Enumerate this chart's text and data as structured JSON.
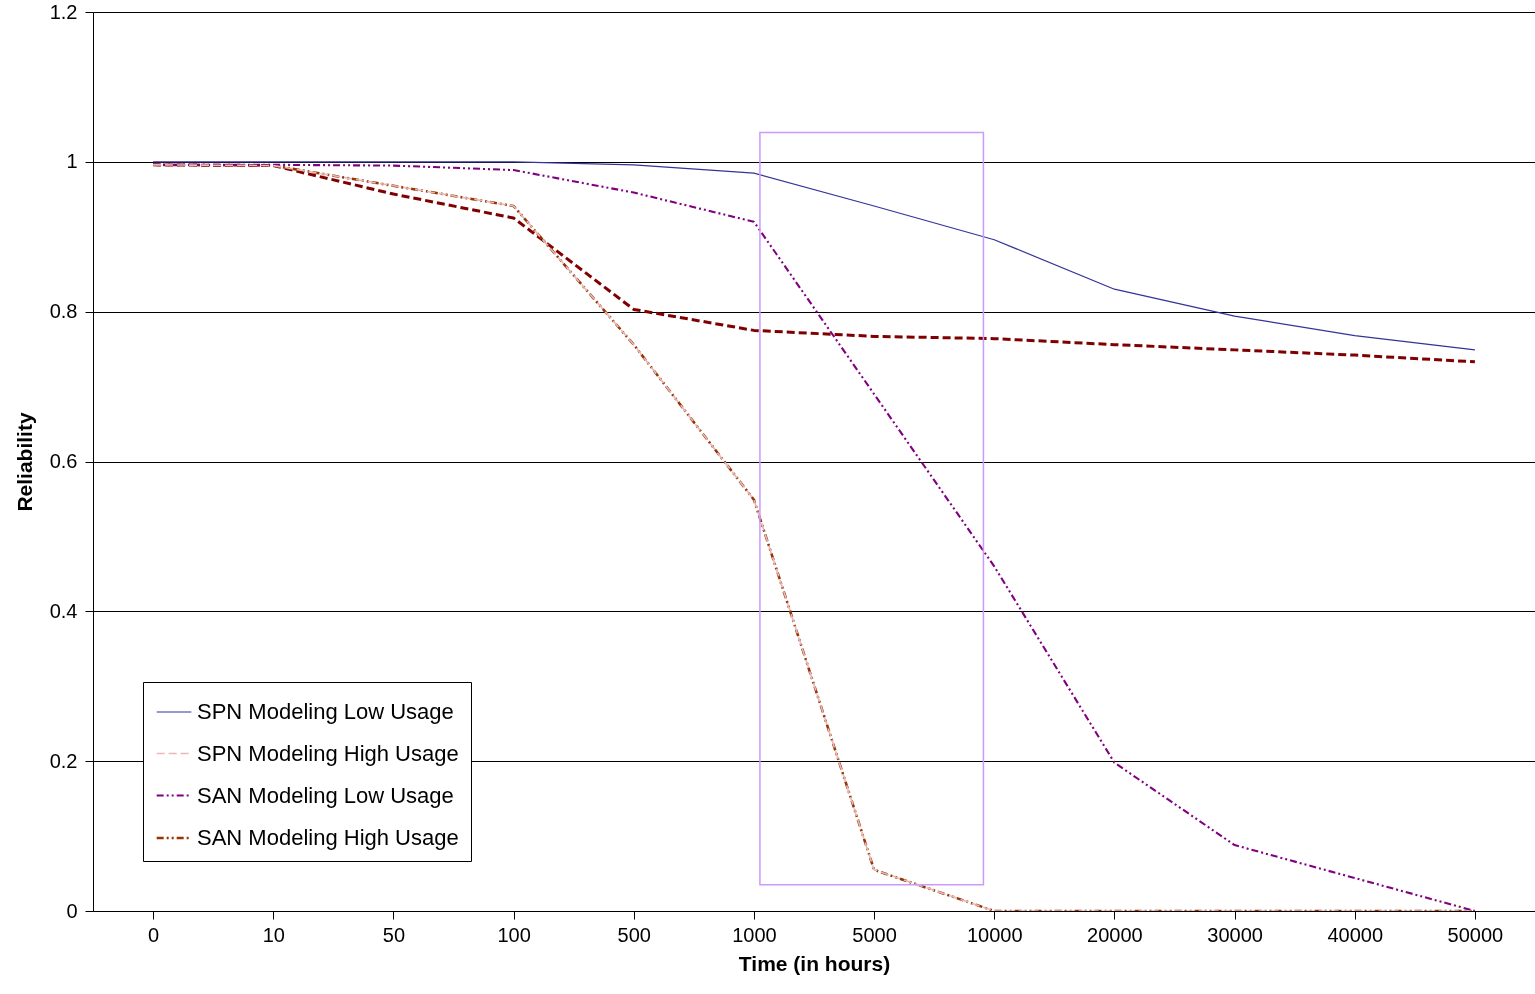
{
  "chart_data": {
    "type": "line",
    "xlabel": "Time (in hours)",
    "ylabel": "Reliability",
    "categories": [
      "0",
      "10",
      "50",
      "100",
      "500",
      "1000",
      "5000",
      "10000",
      "20000",
      "30000",
      "40000",
      "50000"
    ],
    "series": [
      {
        "name": "SPN Modeling Low Usage",
        "color": "#333399",
        "line_style": "solid",
        "values": [
          1,
          1,
          1,
          1,
          0.996,
          0.985,
          0.941,
          0.896,
          0.83,
          0.794,
          0.768,
          0.749
        ]
      },
      {
        "name": "SPN Modeling High Usage",
        "color": "#e6b8b8",
        "line_style": "dashed",
        "values": [
          0.996,
          0.995,
          0.968,
          0.941,
          0.756,
          0.549,
          0.055,
          0,
          0,
          0,
          0,
          0
        ]
      },
      {
        "name": "SAN Modeling Low Usage",
        "color": "#800080",
        "line_style": "dotted",
        "values": [
          0.996,
          0.996,
          0.995,
          0.989,
          0.959,
          0.92,
          0.69,
          0.46,
          0.198,
          0.088,
          0.044,
          0
        ]
      },
      {
        "name": "SAN Modeling High Usage",
        "color": "#993300",
        "line_style": "dotted",
        "values": [
          0.996,
          0.995,
          0.968,
          0.941,
          0.756,
          0.549,
          0.055,
          0,
          0,
          0,
          0,
          0
        ]
      },
      {
        "color": "#800000",
        "line_style": "dashed",
        "values": [
          0.996,
          0.995,
          0.957,
          0.925,
          0.803,
          0.775,
          0.767,
          0.764,
          0.756,
          0.749,
          0.742,
          0.733
        ]
      }
    ],
    "ylim": [
      0,
      1.2
    ],
    "yticks": [
      0,
      0.2,
      0.4,
      0.6,
      0.8,
      1,
      1.2
    ],
    "grid": "y",
    "legend": "bottom left"
  }
}
